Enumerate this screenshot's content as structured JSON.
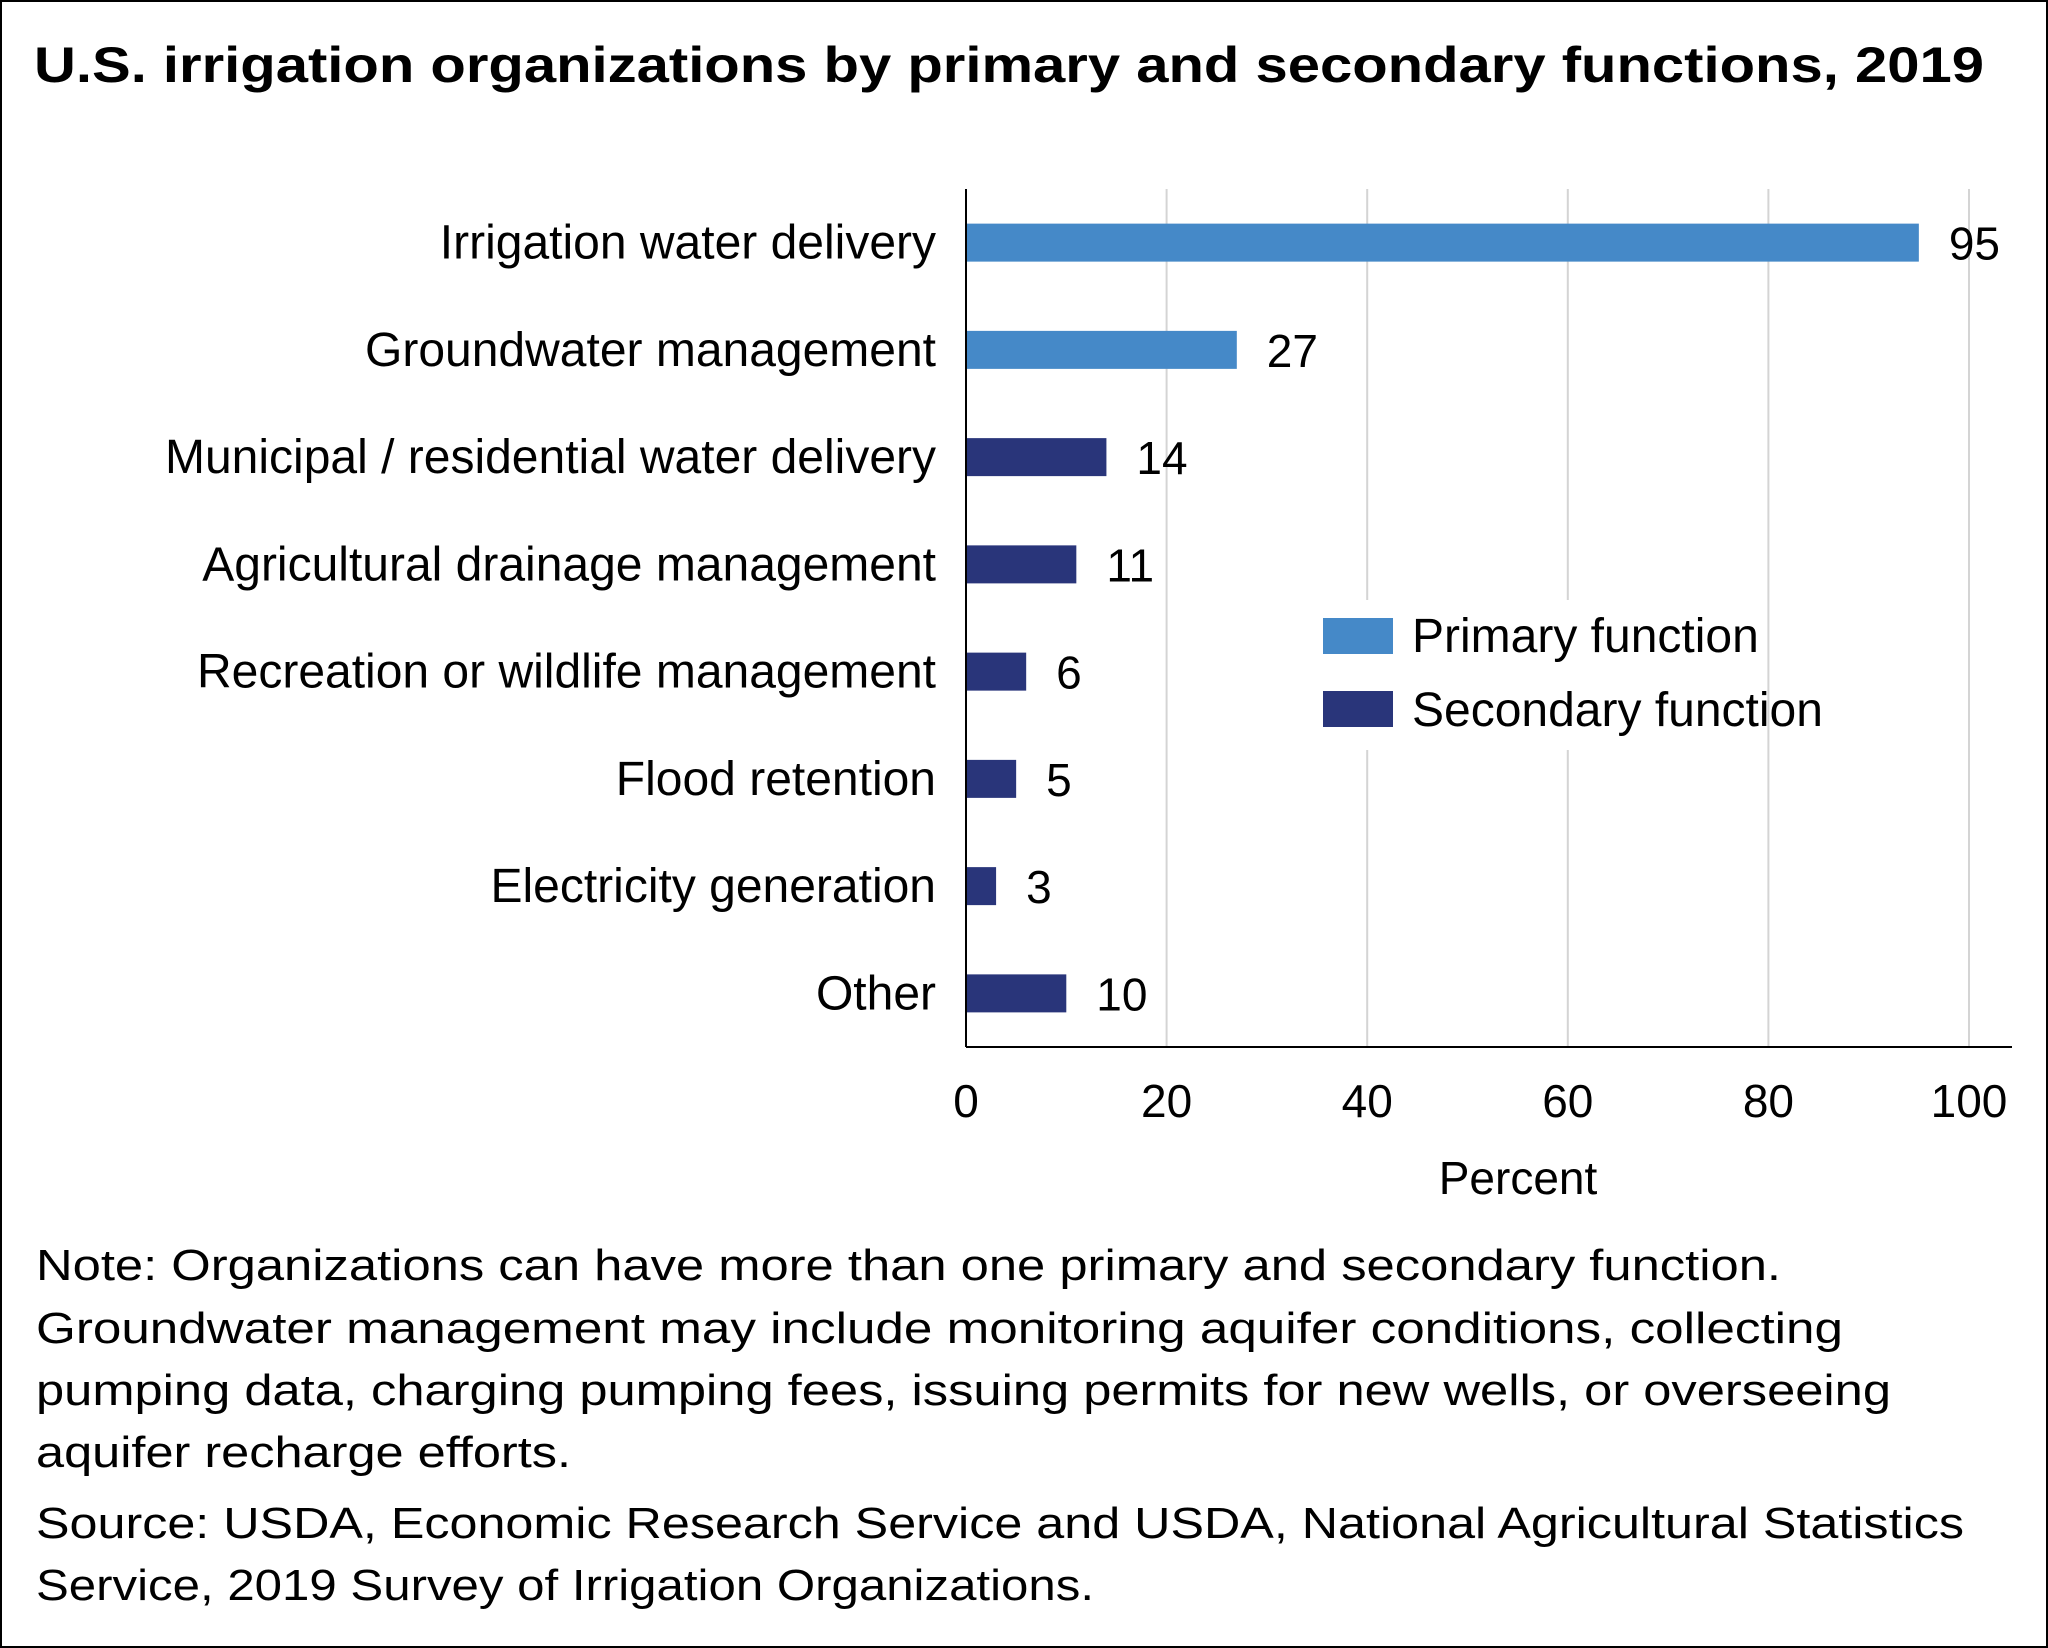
{
  "chart_data": {
    "type": "bar",
    "orientation": "horizontal",
    "title": "U.S. irrigation organizations by primary and secondary functions, 2019",
    "xlabel": "Percent",
    "ylabel": "",
    "xlim": [
      0,
      100
    ],
    "xticks": [
      "0",
      "20",
      "40",
      "60",
      "80",
      "100"
    ],
    "grid": true,
    "legend_position": "right",
    "categories": [
      "Irrigation water delivery",
      "Groundwater management",
      "Municipal / residential water delivery",
      "Agricultural drainage management",
      "Recreation or wildlife management",
      "Flood retention",
      "Electricity generation",
      "Other"
    ],
    "values": [
      95,
      27,
      14,
      11,
      6,
      5,
      3,
      10
    ],
    "groups": [
      "primary",
      "primary",
      "secondary",
      "secondary",
      "secondary",
      "secondary",
      "secondary",
      "secondary"
    ],
    "series": [
      {
        "name": "Primary function",
        "key": "primary",
        "color": "#4589C8"
      },
      {
        "name": "Secondary function",
        "key": "secondary",
        "color": "#29357A"
      }
    ]
  },
  "notes": {
    "note_lines": [
      "Note: Organizations can have more than one primary and secondary function.",
      "Groundwater management may include monitoring aquifer conditions, collecting",
      "pumping data, charging pumping fees, issuing permits for new wells, or overseeing",
      "aquifer recharge efforts."
    ],
    "source_lines": [
      "Source: USDA, Economic Research Service and USDA, National Agricultural Statistics",
      "Service, 2019 Survey of Irrigation Organizations."
    ]
  }
}
